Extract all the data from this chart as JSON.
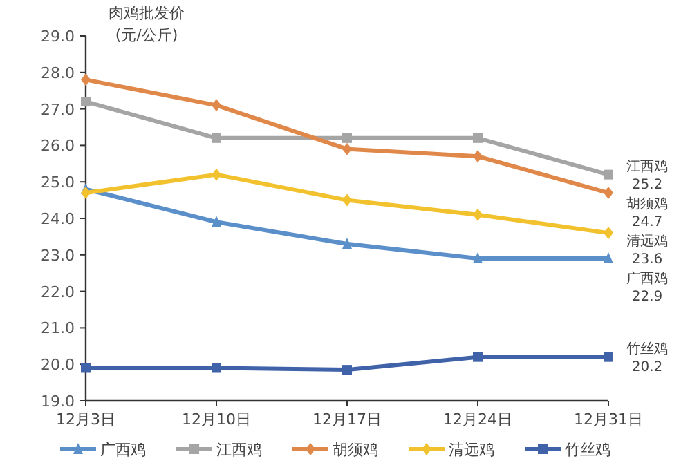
{
  "chart_data": {
    "type": "line",
    "ylabel": "肉鸡批发价\n(元/公斤)",
    "categories": [
      "12月3日",
      "12月10日",
      "12月17日",
      "12月24日",
      "12月31日"
    ],
    "series": [
      {
        "name": "广西鸡",
        "color": "#5b8fc9",
        "marker": "triangle",
        "values": [
          24.8,
          23.9,
          23.3,
          22.9,
          22.9
        ],
        "value_labels": [
          null,
          null,
          null,
          null,
          "22.9"
        ]
      },
      {
        "name": "江西鸡",
        "color": "#a5a5a5",
        "marker": "square",
        "values": [
          27.2,
          26.2,
          26.2,
          26.2,
          25.2
        ],
        "value_labels": [
          null,
          null,
          null,
          null,
          "25.2"
        ]
      },
      {
        "name": "胡须鸡",
        "color": "#e0884a",
        "marker": "diamond",
        "values": [
          27.8,
          27.1,
          25.9,
          25.7,
          24.7
        ],
        "value_labels": [
          null,
          null,
          null,
          null,
          "24.7"
        ]
      },
      {
        "name": "清远鸡",
        "color": "#f2c12e",
        "marker": "diamond",
        "values": [
          24.7,
          25.2,
          24.5,
          24.1,
          23.6
        ],
        "value_labels": [
          null,
          null,
          null,
          null,
          "23.6"
        ]
      },
      {
        "name": "竹丝鸡",
        "color": "#3f62a8",
        "marker": "square",
        "values": [
          19.9,
          19.9,
          19.85,
          20.2,
          20.2
        ],
        "value_labels": [
          null,
          null,
          null,
          null,
          "20.2"
        ]
      }
    ],
    "ylim": [
      19,
      29
    ],
    "yticks": [
      {
        "value": 19,
        "label": "19.0"
      },
      {
        "value": 20,
        "label": "20.0"
      },
      {
        "value": 21,
        "label": "21.0"
      },
      {
        "value": 22,
        "label": "22.0"
      },
      {
        "value": 23,
        "label": "23.0"
      },
      {
        "value": 24,
        "label": "24.0"
      },
      {
        "value": 25,
        "label": "25.0"
      },
      {
        "value": 26,
        "label": "26.0"
      },
      {
        "value": 27,
        "label": "27.0"
      },
      {
        "value": 28,
        "label": "28.0"
      },
      {
        "value": 29,
        "label": "29.0"
      }
    ],
    "grid": false,
    "legend": "bottom",
    "line_style": "solid"
  }
}
